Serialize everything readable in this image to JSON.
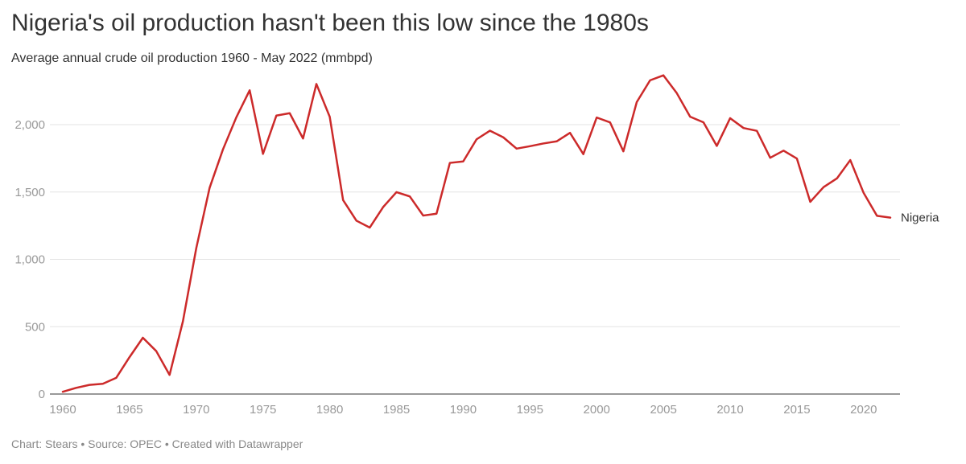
{
  "header": {
    "title": "Nigeria's oil production hasn't been this low since the 1980s",
    "subtitle": "Average annual crude oil production 1960 - May 2022 (mmbpd)"
  },
  "footer": {
    "text": "Chart: Stears • Source: OPEC • Created with Datawrapper"
  },
  "colors": {
    "line": "#cc2a2a",
    "grid": "#e3e3e3",
    "axis_text": "#999999"
  },
  "chart_data": {
    "type": "line",
    "title": "Nigeria's oil production hasn't been this low since the 1980s",
    "subtitle": "Average annual crude oil production 1960 - May 2022 (mmbpd)",
    "xlabel": "",
    "ylabel": "",
    "xlim": [
      1960,
      2022
    ],
    "ylim": [
      0,
      2400
    ],
    "grid": true,
    "x_ticks": [
      1960,
      1965,
      1970,
      1975,
      1980,
      1985,
      1990,
      1995,
      2000,
      2005,
      2010,
      2015,
      2020
    ],
    "y_ticks": [
      0,
      500,
      1000,
      1500,
      2000
    ],
    "y_tick_labels": [
      "0",
      "500",
      "1,000",
      "1,500",
      "2,000"
    ],
    "series": [
      {
        "name": "Nigeria",
        "x": [
          1960,
          1961,
          1962,
          1963,
          1964,
          1965,
          1966,
          1967,
          1968,
          1969,
          1970,
          1971,
          1972,
          1973,
          1974,
          1975,
          1976,
          1977,
          1978,
          1979,
          1980,
          1981,
          1982,
          1983,
          1984,
          1985,
          1986,
          1987,
          1988,
          1989,
          1990,
          1991,
          1992,
          1993,
          1994,
          1995,
          1996,
          1997,
          1998,
          1999,
          2000,
          2001,
          2002,
          2003,
          2004,
          2005,
          2006,
          2007,
          2008,
          2009,
          2010,
          2011,
          2012,
          2013,
          2014,
          2015,
          2016,
          2017,
          2018,
          2019,
          2020,
          2021,
          2022
        ],
        "values": [
          17,
          46,
          68,
          76,
          120,
          274,
          418,
          319,
          142,
          540,
          1083,
          1531,
          1816,
          2054,
          2255,
          1783,
          2067,
          2085,
          1897,
          2302,
          2058,
          1440,
          1287,
          1236,
          1388,
          1499,
          1467,
          1325,
          1339,
          1716,
          1727,
          1891,
          1955,
          1906,
          1822,
          1840,
          1860,
          1876,
          1939,
          1781,
          2053,
          2017,
          1802,
          2167,
          2329,
          2366,
          2234,
          2059,
          2017,
          1842,
          2048,
          1975,
          1954,
          1754,
          1807,
          1748,
          1427,
          1536,
          1601,
          1737,
          1493,
          1323,
          1310
        ]
      }
    ]
  }
}
